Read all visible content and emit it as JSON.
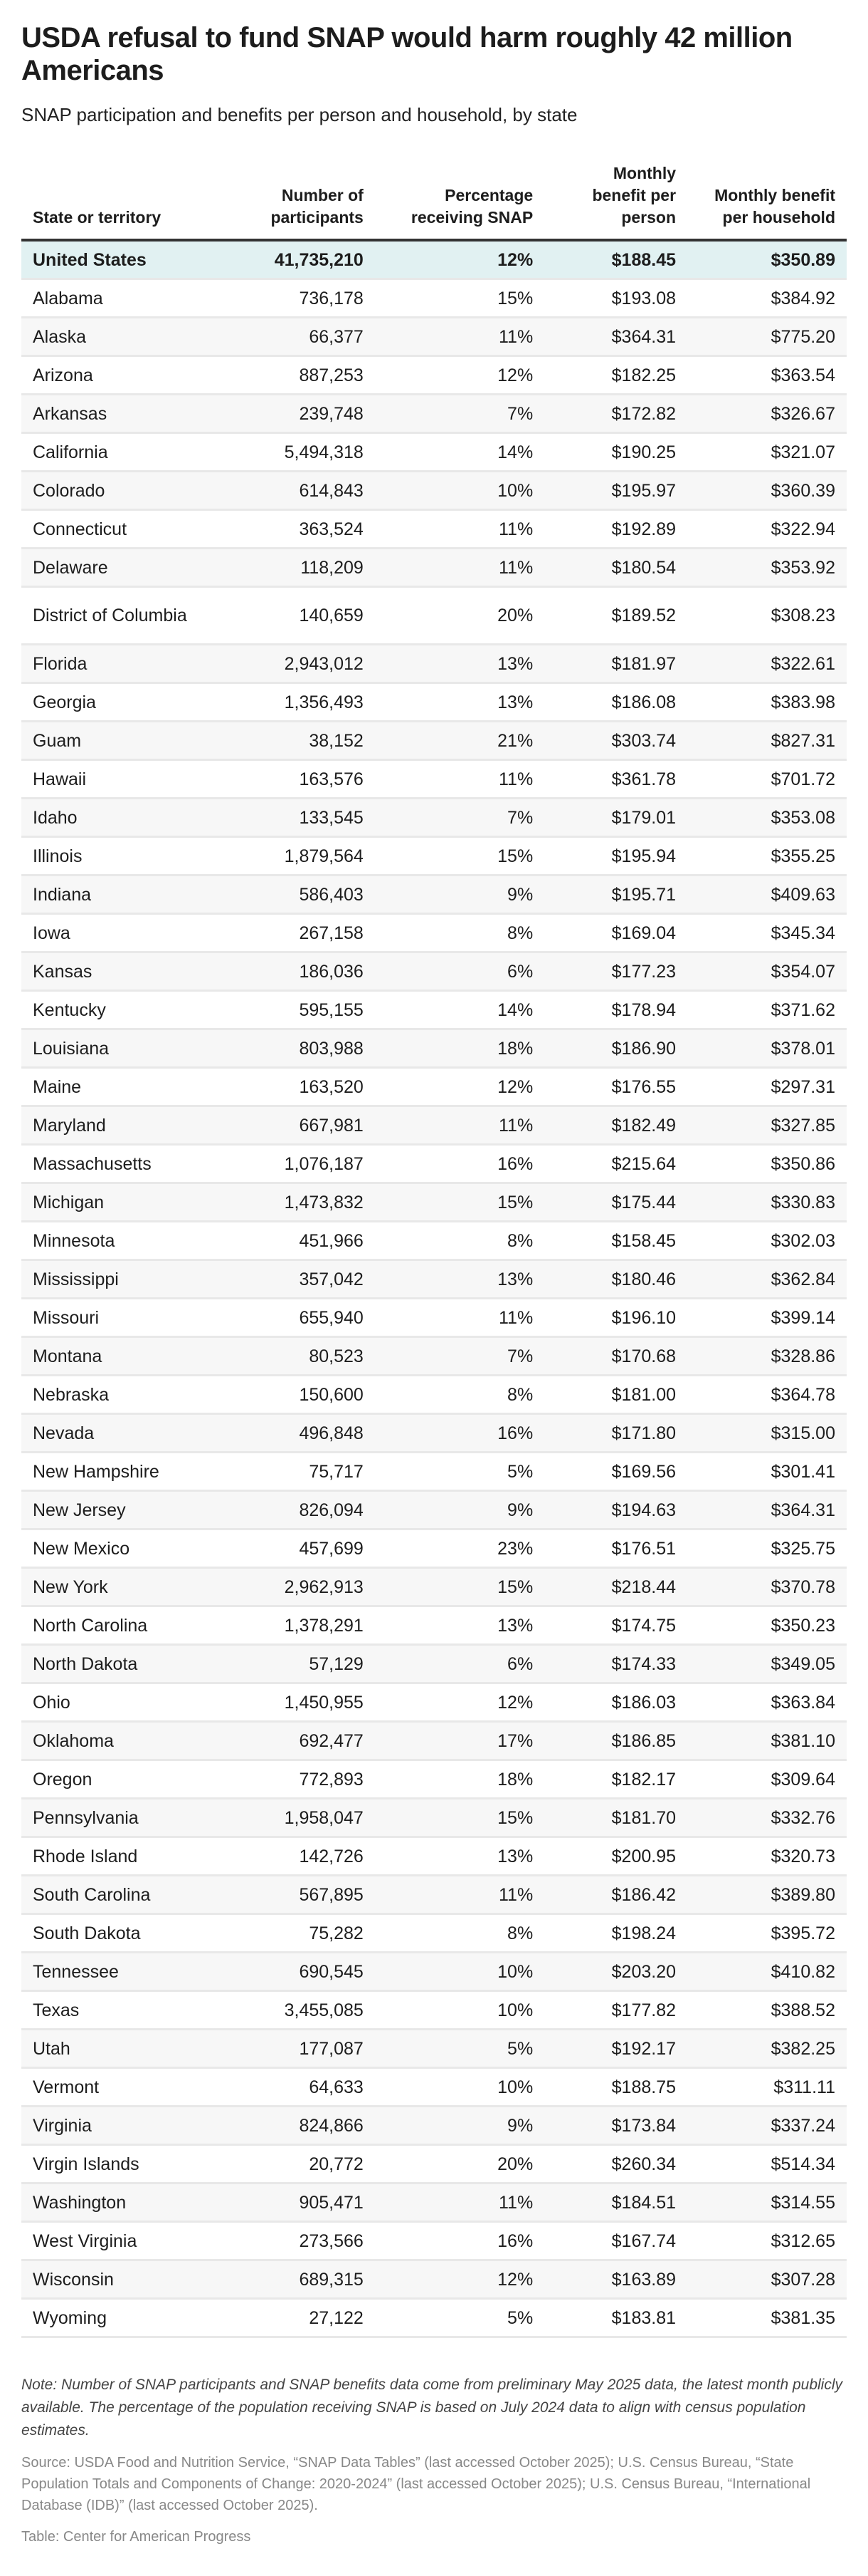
{
  "title": "USDA refusal to fund SNAP would harm roughly 42 million Americans",
  "subtitle": "SNAP participation and benefits per person and household, by state",
  "columns": [
    "State or territory",
    "Number of participants",
    "Percentage receiving SNAP",
    "Monthly benefit per person",
    "Monthly benefit per household"
  ],
  "colors": {
    "total_row_bg": "#e1f1f2",
    "stripe_bg": "#f7f7f7",
    "header_rule": "#333333"
  },
  "rows": [
    {
      "state": "United States",
      "participants": "41,735,210",
      "pct": "12%",
      "per_person": "$188.45",
      "per_household": "$350.89",
      "total": true
    },
    {
      "state": "Alabama",
      "participants": "736,178",
      "pct": "15%",
      "per_person": "$193.08",
      "per_household": "$384.92"
    },
    {
      "state": "Alaska",
      "participants": "66,377",
      "pct": "11%",
      "per_person": "$364.31",
      "per_household": "$775.20"
    },
    {
      "state": "Arizona",
      "participants": "887,253",
      "pct": "12%",
      "per_person": "$182.25",
      "per_household": "$363.54"
    },
    {
      "state": "Arkansas",
      "participants": "239,748",
      "pct": "7%",
      "per_person": "$172.82",
      "per_household": "$326.67"
    },
    {
      "state": "California",
      "participants": "5,494,318",
      "pct": "14%",
      "per_person": "$190.25",
      "per_household": "$321.07"
    },
    {
      "state": "Colorado",
      "participants": "614,843",
      "pct": "10%",
      "per_person": "$195.97",
      "per_household": "$360.39"
    },
    {
      "state": "Connecticut",
      "participants": "363,524",
      "pct": "11%",
      "per_person": "$192.89",
      "per_household": "$322.94"
    },
    {
      "state": "Delaware",
      "participants": "118,209",
      "pct": "11%",
      "per_person": "$180.54",
      "per_household": "$353.92"
    },
    {
      "state": "District of Columbia",
      "participants": "140,659",
      "pct": "20%",
      "per_person": "$189.52",
      "per_household": "$308.23"
    },
    {
      "state": "Florida",
      "participants": "2,943,012",
      "pct": "13%",
      "per_person": "$181.97",
      "per_household": "$322.61"
    },
    {
      "state": "Georgia",
      "participants": "1,356,493",
      "pct": "13%",
      "per_person": "$186.08",
      "per_household": "$383.98"
    },
    {
      "state": "Guam",
      "participants": "38,152",
      "pct": "21%",
      "per_person": "$303.74",
      "per_household": "$827.31"
    },
    {
      "state": "Hawaii",
      "participants": "163,576",
      "pct": "11%",
      "per_person": "$361.78",
      "per_household": "$701.72"
    },
    {
      "state": "Idaho",
      "participants": "133,545",
      "pct": "7%",
      "per_person": "$179.01",
      "per_household": "$353.08"
    },
    {
      "state": "Illinois",
      "participants": "1,879,564",
      "pct": "15%",
      "per_person": "$195.94",
      "per_household": "$355.25"
    },
    {
      "state": "Indiana",
      "participants": "586,403",
      "pct": "9%",
      "per_person": "$195.71",
      "per_household": "$409.63"
    },
    {
      "state": "Iowa",
      "participants": "267,158",
      "pct": "8%",
      "per_person": "$169.04",
      "per_household": "$345.34"
    },
    {
      "state": "Kansas",
      "participants": "186,036",
      "pct": "6%",
      "per_person": "$177.23",
      "per_household": "$354.07"
    },
    {
      "state": "Kentucky",
      "participants": "595,155",
      "pct": "14%",
      "per_person": "$178.94",
      "per_household": "$371.62"
    },
    {
      "state": "Louisiana",
      "participants": "803,988",
      "pct": "18%",
      "per_person": "$186.90",
      "per_household": "$378.01"
    },
    {
      "state": "Maine",
      "participants": "163,520",
      "pct": "12%",
      "per_person": "$176.55",
      "per_household": "$297.31"
    },
    {
      "state": "Maryland",
      "participants": "667,981",
      "pct": "11%",
      "per_person": "$182.49",
      "per_household": "$327.85"
    },
    {
      "state": "Massachusetts",
      "participants": "1,076,187",
      "pct": "16%",
      "per_person": "$215.64",
      "per_household": "$350.86"
    },
    {
      "state": "Michigan",
      "participants": "1,473,832",
      "pct": "15%",
      "per_person": "$175.44",
      "per_household": "$330.83"
    },
    {
      "state": "Minnesota",
      "participants": "451,966",
      "pct": "8%",
      "per_person": "$158.45",
      "per_household": "$302.03"
    },
    {
      "state": "Mississippi",
      "participants": "357,042",
      "pct": "13%",
      "per_person": "$180.46",
      "per_household": "$362.84"
    },
    {
      "state": "Missouri",
      "participants": "655,940",
      "pct": "11%",
      "per_person": "$196.10",
      "per_household": "$399.14"
    },
    {
      "state": "Montana",
      "participants": "80,523",
      "pct": "7%",
      "per_person": "$170.68",
      "per_household": "$328.86"
    },
    {
      "state": "Nebraska",
      "participants": "150,600",
      "pct": "8%",
      "per_person": "$181.00",
      "per_household": "$364.78"
    },
    {
      "state": "Nevada",
      "participants": "496,848",
      "pct": "16%",
      "per_person": "$171.80",
      "per_household": "$315.00"
    },
    {
      "state": "New Hampshire",
      "participants": "75,717",
      "pct": "5%",
      "per_person": "$169.56",
      "per_household": "$301.41"
    },
    {
      "state": "New Jersey",
      "participants": "826,094",
      "pct": "9%",
      "per_person": "$194.63",
      "per_household": "$364.31"
    },
    {
      "state": "New Mexico",
      "participants": "457,699",
      "pct": "23%",
      "per_person": "$176.51",
      "per_household": "$325.75"
    },
    {
      "state": "New York",
      "participants": "2,962,913",
      "pct": "15%",
      "per_person": "$218.44",
      "per_household": "$370.78"
    },
    {
      "state": "North Carolina",
      "participants": "1,378,291",
      "pct": "13%",
      "per_person": "$174.75",
      "per_household": "$350.23"
    },
    {
      "state": "North Dakota",
      "participants": "57,129",
      "pct": "6%",
      "per_person": "$174.33",
      "per_household": "$349.05"
    },
    {
      "state": "Ohio",
      "participants": "1,450,955",
      "pct": "12%",
      "per_person": "$186.03",
      "per_household": "$363.84"
    },
    {
      "state": "Oklahoma",
      "participants": "692,477",
      "pct": "17%",
      "per_person": "$186.85",
      "per_household": "$381.10"
    },
    {
      "state": "Oregon",
      "participants": "772,893",
      "pct": "18%",
      "per_person": "$182.17",
      "per_household": "$309.64"
    },
    {
      "state": "Pennsylvania",
      "participants": "1,958,047",
      "pct": "15%",
      "per_person": "$181.70",
      "per_household": "$332.76"
    },
    {
      "state": "Rhode Island",
      "participants": "142,726",
      "pct": "13%",
      "per_person": "$200.95",
      "per_household": "$320.73"
    },
    {
      "state": "South Carolina",
      "participants": "567,895",
      "pct": "11%",
      "per_person": "$186.42",
      "per_household": "$389.80"
    },
    {
      "state": "South Dakota",
      "participants": "75,282",
      "pct": "8%",
      "per_person": "$198.24",
      "per_household": "$395.72"
    },
    {
      "state": "Tennessee",
      "participants": "690,545",
      "pct": "10%",
      "per_person": "$203.20",
      "per_household": "$410.82"
    },
    {
      "state": "Texas",
      "participants": "3,455,085",
      "pct": "10%",
      "per_person": "$177.82",
      "per_household": "$388.52"
    },
    {
      "state": "Utah",
      "participants": "177,087",
      "pct": "5%",
      "per_person": "$192.17",
      "per_household": "$382.25"
    },
    {
      "state": "Vermont",
      "participants": "64,633",
      "pct": "10%",
      "per_person": "$188.75",
      "per_household": "$311.11"
    },
    {
      "state": "Virginia",
      "participants": "824,866",
      "pct": "9%",
      "per_person": "$173.84",
      "per_household": "$337.24"
    },
    {
      "state": "Virgin Islands",
      "participants": "20,772",
      "pct": "20%",
      "per_person": "$260.34",
      "per_household": "$514.34"
    },
    {
      "state": "Washington",
      "participants": "905,471",
      "pct": "11%",
      "per_person": "$184.51",
      "per_household": "$314.55"
    },
    {
      "state": "West Virginia",
      "participants": "273,566",
      "pct": "16%",
      "per_person": "$167.74",
      "per_household": "$312.65"
    },
    {
      "state": "Wisconsin",
      "participants": "689,315",
      "pct": "12%",
      "per_person": "$163.89",
      "per_household": "$307.28"
    },
    {
      "state": "Wyoming",
      "participants": "27,122",
      "pct": "5%",
      "per_person": "$183.81",
      "per_household": "$381.35"
    }
  ],
  "note": "Note: Number of SNAP participants and SNAP benefits data come from preliminary May 2025 data, the latest month publicly available. The percentage of the population receiving SNAP is based on July 2024 data to align with census population estimates.",
  "source": "Source: USDA Food and Nutrition Service, “SNAP Data Tables” (last accessed October 2025); U.S. Census Bureau, “State Population Totals and Components of Change: 2020-2024” (last accessed October 2025); U.S. Census Bureau, “International Database (IDB)” (last accessed October 2025).",
  "credit": "Table: Center for American Progress",
  "chart_data": {
    "type": "table",
    "title": "USDA refusal to fund SNAP would harm roughly 42 million Americans",
    "subtitle": "SNAP participation and benefits per person and household, by state",
    "columns": [
      "State or territory",
      "Number of participants",
      "Percentage receiving SNAP",
      "Monthly benefit per person",
      "Monthly benefit per household"
    ],
    "rows": [
      [
        "United States",
        41735210,
        12,
        188.45,
        350.89
      ],
      [
        "Alabama",
        736178,
        15,
        193.08,
        384.92
      ],
      [
        "Alaska",
        66377,
        11,
        364.31,
        775.2
      ],
      [
        "Arizona",
        887253,
        12,
        182.25,
        363.54
      ],
      [
        "Arkansas",
        239748,
        7,
        172.82,
        326.67
      ],
      [
        "California",
        5494318,
        14,
        190.25,
        321.07
      ],
      [
        "Colorado",
        614843,
        10,
        195.97,
        360.39
      ],
      [
        "Connecticut",
        363524,
        11,
        192.89,
        322.94
      ],
      [
        "Delaware",
        118209,
        11,
        180.54,
        353.92
      ],
      [
        "District of Columbia",
        140659,
        20,
        189.52,
        308.23
      ],
      [
        "Florida",
        2943012,
        13,
        181.97,
        322.61
      ],
      [
        "Georgia",
        1356493,
        13,
        186.08,
        383.98
      ],
      [
        "Guam",
        38152,
        21,
        303.74,
        827.31
      ],
      [
        "Hawaii",
        163576,
        11,
        361.78,
        701.72
      ],
      [
        "Idaho",
        133545,
        7,
        179.01,
        353.08
      ],
      [
        "Illinois",
        1879564,
        15,
        195.94,
        355.25
      ],
      [
        "Indiana",
        586403,
        9,
        195.71,
        409.63
      ],
      [
        "Iowa",
        267158,
        8,
        169.04,
        345.34
      ],
      [
        "Kansas",
        186036,
        6,
        177.23,
        354.07
      ],
      [
        "Kentucky",
        595155,
        14,
        178.94,
        371.62
      ],
      [
        "Louisiana",
        803988,
        18,
        186.9,
        378.01
      ],
      [
        "Maine",
        163520,
        12,
        176.55,
        297.31
      ],
      [
        "Maryland",
        667981,
        11,
        182.49,
        327.85
      ],
      [
        "Massachusetts",
        1076187,
        16,
        215.64,
        350.86
      ],
      [
        "Michigan",
        1473832,
        15,
        175.44,
        330.83
      ],
      [
        "Minnesota",
        451966,
        8,
        158.45,
        302.03
      ],
      [
        "Mississippi",
        357042,
        13,
        180.46,
        362.84
      ],
      [
        "Missouri",
        655940,
        11,
        196.1,
        399.14
      ],
      [
        "Montana",
        80523,
        7,
        170.68,
        328.86
      ],
      [
        "Nebraska",
        150600,
        8,
        181.0,
        364.78
      ],
      [
        "Nevada",
        496848,
        16,
        171.8,
        315.0
      ],
      [
        "New Hampshire",
        75717,
        5,
        169.56,
        301.41
      ],
      [
        "New Jersey",
        826094,
        9,
        194.63,
        364.31
      ],
      [
        "New Mexico",
        457699,
        23,
        176.51,
        325.75
      ],
      [
        "New York",
        2962913,
        15,
        218.44,
        370.78
      ],
      [
        "North Carolina",
        1378291,
        13,
        174.75,
        350.23
      ],
      [
        "North Dakota",
        57129,
        6,
        174.33,
        349.05
      ],
      [
        "Ohio",
        1450955,
        12,
        186.03,
        363.84
      ],
      [
        "Oklahoma",
        692477,
        17,
        186.85,
        381.1
      ],
      [
        "Oregon",
        772893,
        18,
        182.17,
        309.64
      ],
      [
        "Pennsylvania",
        1958047,
        15,
        181.7,
        332.76
      ],
      [
        "Rhode Island",
        142726,
        13,
        200.95,
        320.73
      ],
      [
        "South Carolina",
        567895,
        11,
        186.42,
        389.8
      ],
      [
        "South Dakota",
        75282,
        8,
        198.24,
        395.72
      ],
      [
        "Tennessee",
        690545,
        10,
        203.2,
        410.82
      ],
      [
        "Texas",
        3455085,
        10,
        177.82,
        388.52
      ],
      [
        "Utah",
        177087,
        5,
        192.17,
        382.25
      ],
      [
        "Vermont",
        64633,
        10,
        188.75,
        311.11
      ],
      [
        "Virginia",
        824866,
        9,
        173.84,
        337.24
      ],
      [
        "Virgin Islands",
        20772,
        20,
        260.34,
        514.34
      ],
      [
        "Washington",
        905471,
        11,
        184.51,
        314.55
      ],
      [
        "West Virginia",
        273566,
        16,
        167.74,
        312.65
      ],
      [
        "Wisconsin",
        689315,
        12,
        163.89,
        307.28
      ],
      [
        "Wyoming",
        27122,
        5,
        183.81,
        381.35
      ]
    ]
  }
}
